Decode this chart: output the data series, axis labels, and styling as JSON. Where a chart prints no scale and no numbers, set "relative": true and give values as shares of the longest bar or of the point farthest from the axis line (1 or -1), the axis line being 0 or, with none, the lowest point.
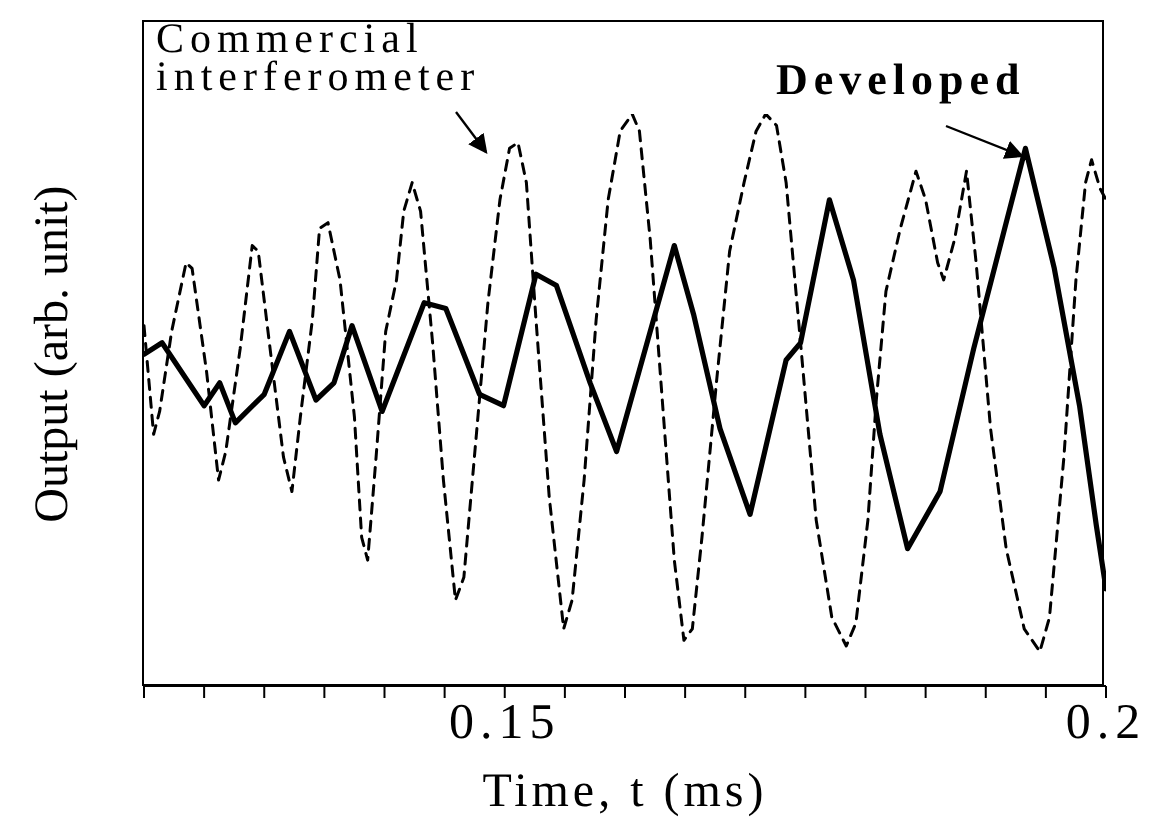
{
  "chart_data": {
    "type": "line",
    "xlabel": "Time, t (ms)",
    "ylabel": "Output (arb. unit)",
    "relative": true,
    "xlim": [
      0.12,
      0.2
    ],
    "xticks": [
      {
        "value": 0.12,
        "label": null
      },
      {
        "value": 0.125,
        "label": null
      },
      {
        "value": 0.13,
        "label": null
      },
      {
        "value": 0.135,
        "label": null
      },
      {
        "value": 0.14,
        "label": null
      },
      {
        "value": 0.145,
        "label": null
      },
      0.15,
      {
        "value": 0.155,
        "label": null
      },
      {
        "value": 0.16,
        "label": null
      },
      {
        "value": 0.165,
        "label": null
      },
      {
        "value": 0.17,
        "label": null
      },
      {
        "value": 0.175,
        "label": null
      },
      {
        "value": 0.18,
        "label": null
      },
      {
        "value": 0.185,
        "label": null
      },
      {
        "value": 0.19,
        "label": null
      },
      {
        "value": 0.195,
        "label": null
      },
      0.2
    ],
    "series": [
      {
        "name": "Commercial interferometer",
        "color": "#000000",
        "line_style": "dashed",
        "x": [
          0.12,
          0.1208,
          0.1213,
          0.1223,
          0.1235,
          0.124,
          0.1252,
          0.1262,
          0.1268,
          0.128,
          0.129,
          0.1295,
          0.1306,
          0.1316,
          0.1323,
          0.133,
          0.134,
          0.1346,
          0.1353,
          0.1363,
          0.1375,
          0.1381,
          0.1386,
          0.1393,
          0.1401,
          0.141,
          0.1416,
          0.1423,
          0.143,
          0.144,
          0.1449,
          0.1459,
          0.1466,
          0.1476,
          0.1486,
          0.1496,
          0.1504,
          0.1511,
          0.1518,
          0.1526,
          0.1537,
          0.1549,
          0.1556,
          0.1566,
          0.1576,
          0.1586,
          0.1596,
          0.1606,
          0.1612,
          0.1621,
          0.1631,
          0.1641,
          0.1649,
          0.1656,
          0.1664,
          0.1676,
          0.1687,
          0.1699,
          0.1709,
          0.1717,
          0.1726,
          0.1734,
          0.1746,
          0.1759,
          0.1772,
          0.1784,
          0.1792,
          0.1802,
          0.1809,
          0.1817,
          0.1829,
          0.1842,
          0.185,
          0.186,
          0.1865,
          0.1874,
          0.1884,
          0.1892,
          0.1904,
          0.1917,
          0.1932,
          0.1945,
          0.1953,
          0.1965,
          0.1975,
          0.1983,
          0.1988,
          0.1995,
          0.2
        ],
        "values": [
          0.63,
          0.44,
          0.48,
          0.62,
          0.74,
          0.73,
          0.55,
          0.36,
          0.41,
          0.59,
          0.77,
          0.76,
          0.57,
          0.4,
          0.34,
          0.47,
          0.64,
          0.8,
          0.81,
          0.71,
          0.47,
          0.26,
          0.22,
          0.4,
          0.62,
          0.71,
          0.83,
          0.88,
          0.83,
          0.6,
          0.36,
          0.15,
          0.19,
          0.43,
          0.67,
          0.85,
          0.94,
          0.95,
          0.88,
          0.64,
          0.33,
          0.1,
          0.15,
          0.36,
          0.64,
          0.85,
          0.97,
          1.0,
          0.97,
          0.78,
          0.5,
          0.22,
          0.08,
          0.1,
          0.26,
          0.53,
          0.76,
          0.88,
          0.97,
          1.0,
          0.98,
          0.88,
          0.6,
          0.29,
          0.12,
          0.07,
          0.11,
          0.29,
          0.5,
          0.69,
          0.8,
          0.9,
          0.85,
          0.74,
          0.71,
          0.78,
          0.9,
          0.74,
          0.45,
          0.24,
          0.1,
          0.06,
          0.12,
          0.4,
          0.71,
          0.88,
          0.92,
          0.87,
          0.85
        ]
      },
      {
        "name": "Developed",
        "color": "#000000",
        "line_style": "solid",
        "x": [
          0.12,
          0.1215,
          0.125,
          0.1263,
          0.1276,
          0.13,
          0.1321,
          0.1343,
          0.1358,
          0.1373,
          0.1398,
          0.1433,
          0.1451,
          0.1479,
          0.1499,
          0.1526,
          0.1543,
          0.1571,
          0.1593,
          0.1641,
          0.1657,
          0.1679,
          0.1704,
          0.1734,
          0.1746,
          0.177,
          0.179,
          0.1812,
          0.1835,
          0.1862,
          0.189,
          0.1917,
          0.1933,
          0.1957,
          0.1978,
          0.1992,
          0.2
        ],
        "values": [
          0.58,
          0.6,
          0.49,
          0.53,
          0.46,
          0.51,
          0.62,
          0.5,
          0.53,
          0.63,
          0.48,
          0.67,
          0.66,
          0.51,
          0.49,
          0.72,
          0.7,
          0.53,
          0.41,
          0.77,
          0.65,
          0.45,
          0.3,
          0.57,
          0.6,
          0.85,
          0.71,
          0.44,
          0.24,
          0.34,
          0.59,
          0.81,
          0.94,
          0.73,
          0.49,
          0.28,
          0.17
        ]
      }
    ]
  }
}
